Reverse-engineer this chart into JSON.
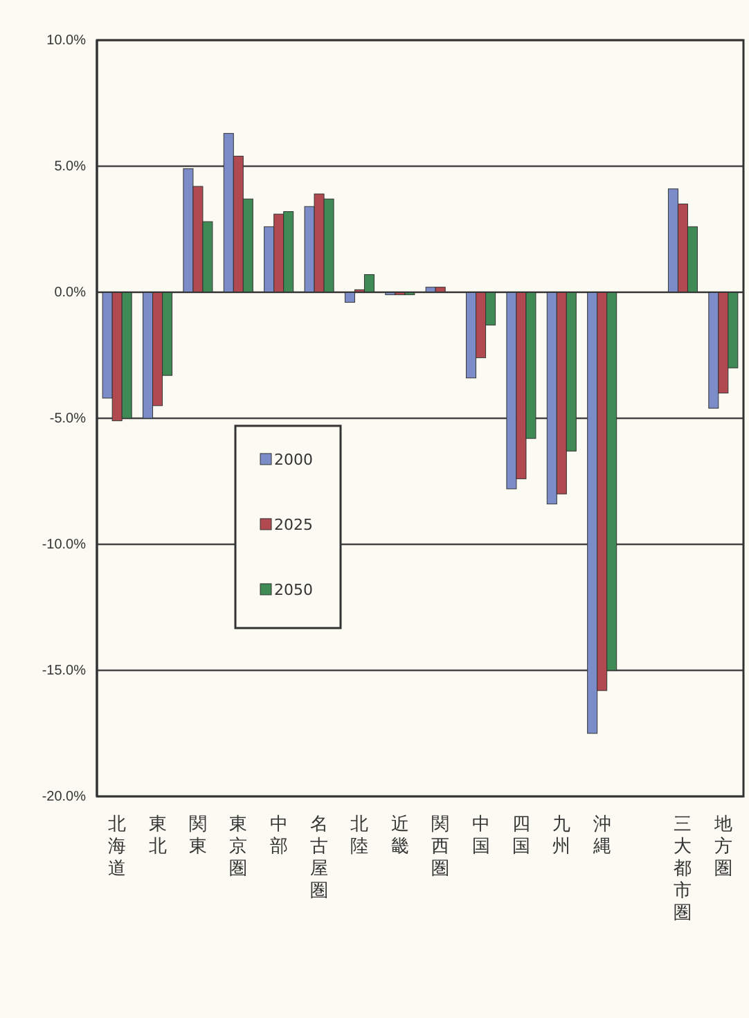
{
  "chart_data": {
    "type": "bar",
    "categories": [
      "北海道",
      "東北",
      "関東",
      "東京圏",
      "中部",
      "名古屋圏",
      "北陸",
      "近畿",
      "関西圏",
      "中国",
      "四国",
      "九州",
      "沖縄",
      null,
      "三大都市圏",
      "地方圏"
    ],
    "series": [
      {
        "name": "2000",
        "color": "#7b8cc8",
        "values": [
          -4.2,
          -5.0,
          4.9,
          6.3,
          2.6,
          3.4,
          -0.4,
          -0.1,
          0.2,
          -3.4,
          -7.8,
          -8.4,
          -17.5,
          null,
          4.1,
          -4.6
        ]
      },
      {
        "name": "2025",
        "color": "#b04a50",
        "values": [
          -5.1,
          -4.5,
          4.2,
          5.4,
          3.1,
          3.9,
          0.1,
          -0.1,
          0.2,
          -2.6,
          -7.4,
          -8.0,
          -15.8,
          null,
          3.5,
          -4.0
        ]
      },
      {
        "name": "2050",
        "color": "#3f8a55",
        "values": [
          -5.0,
          -3.3,
          2.8,
          3.7,
          3.2,
          3.7,
          0.7,
          -0.1,
          0.0,
          -1.3,
          -5.8,
          -6.3,
          -15.0,
          null,
          2.6,
          -3.0
        ]
      }
    ],
    "ylim": [
      -20,
      10
    ],
    "yticks": [
      {
        "value": 10,
        "label": "10.0%"
      },
      {
        "value": 5,
        "label": "5.0%"
      },
      {
        "value": 0,
        "label": "0.0%"
      },
      {
        "value": -5,
        "label": "-5.0%"
      },
      {
        "value": -10,
        "label": "-10.0%"
      },
      {
        "value": -15,
        "label": "-15.0%"
      },
      {
        "value": -20,
        "label": "-20.0%"
      }
    ],
    "grid": "y",
    "legend": "left"
  }
}
